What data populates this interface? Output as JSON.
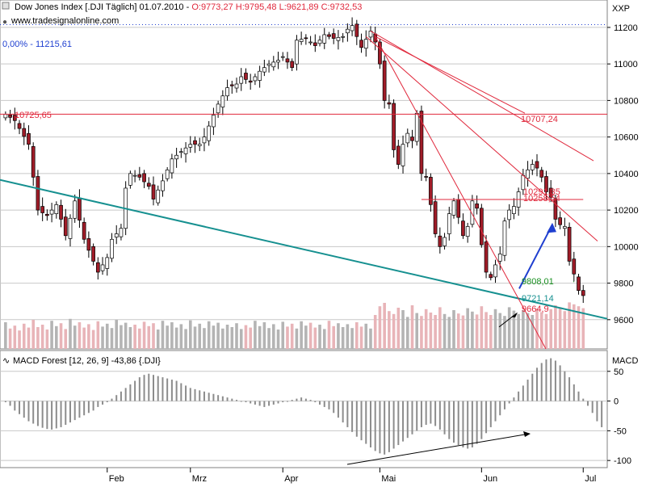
{
  "header": {
    "title": "Dow Jones Index [.DJI  Täglich] 01.07.2010 -",
    "ohlc": "O:9773,27 H:9795,48 L:9621,89 C:9732,53",
    "source": "www.tradesignalonline.com",
    "scale_label": "XXP",
    "ref_line_label": "0,00% - 11215,61"
  },
  "macd_header": {
    "title": "MACD Forest [12, 26, 9] -43,86 {.DJI}",
    "scale_label": "MACD"
  },
  "colors": {
    "background": "#ffffff",
    "grid": "#c8c8c8",
    "candle_up": "#ffffff",
    "candle_down": "#a01c28",
    "candle_wick": "#000000",
    "resistance_red": "#e0283c",
    "support_teal": "#169090",
    "green_level": "#189020",
    "blue_arrow": "#1f3fd0",
    "volume_gray": "#b4b4b4",
    "volume_pink": "#e8b4b8",
    "macd_bar": "#8c8c8c"
  },
  "chart_data": [
    {
      "type": "candlestick",
      "ylim": [
        9440,
        11350
      ],
      "y_ticks": [
        9600,
        9800,
        10000,
        10200,
        10400,
        10600,
        10800,
        11000,
        11200
      ],
      "x_ticks": [
        "Feb",
        "Mrz",
        "Apr",
        "Mai",
        "Jun",
        "Jul"
      ],
      "x_tick_days": [
        22,
        40,
        60,
        81,
        103,
        125
      ],
      "n_days": 130,
      "close_path": [
        [
          0,
          10725
        ],
        [
          2,
          10690
        ],
        [
          5,
          10560
        ],
        [
          7,
          10200
        ],
        [
          9,
          10170
        ],
        [
          11,
          10230
        ],
        [
          12,
          10150
        ],
        [
          13,
          10060
        ],
        [
          15,
          10250
        ],
        [
          17,
          10040
        ],
        [
          19,
          9920
        ],
        [
          20,
          9860
        ],
        [
          22,
          9940
        ],
        [
          23,
          10040
        ],
        [
          25,
          10100
        ],
        [
          26,
          10320
        ],
        [
          27,
          10400
        ],
        [
          29,
          10380
        ],
        [
          31,
          10330
        ],
        [
          32,
          10260
        ],
        [
          34,
          10360
        ],
        [
          36,
          10480
        ],
        [
          38,
          10520
        ],
        [
          40,
          10560
        ],
        [
          42,
          10560
        ],
        [
          43,
          10600
        ],
        [
          45,
          10720
        ],
        [
          46,
          10780
        ],
        [
          48,
          10870
        ],
        [
          50,
          10890
        ],
        [
          51,
          10930
        ],
        [
          53,
          10900
        ],
        [
          55,
          10960
        ],
        [
          57,
          11000
        ],
        [
          59,
          11020
        ],
        [
          60,
          11040
        ],
        [
          62,
          10980
        ],
        [
          63,
          11130
        ],
        [
          65,
          11140
        ],
        [
          67,
          11100
        ],
        [
          69,
          11160
        ],
        [
          71,
          11140
        ],
        [
          73,
          11150
        ],
        [
          74,
          11190
        ],
        [
          75,
          11210
        ],
        [
          77,
          11090
        ],
        [
          79,
          11180
        ],
        [
          80,
          11120
        ],
        [
          81,
          11000
        ],
        [
          82,
          10800
        ],
        [
          83,
          10780
        ],
        [
          84,
          10530
        ],
        [
          85,
          10450
        ],
        [
          86,
          10560
        ],
        [
          87,
          10620
        ],
        [
          88,
          10580
        ],
        [
          89,
          10730
        ],
        [
          90,
          10400
        ],
        [
          91,
          10380
        ],
        [
          92,
          10230
        ],
        [
          93,
          10070
        ],
        [
          94,
          10000
        ],
        [
          95,
          10050
        ],
        [
          96,
          10180
        ],
        [
          97,
          10250
        ],
        [
          98,
          10160
        ],
        [
          99,
          10060
        ],
        [
          100,
          10110
        ],
        [
          101,
          10250
        ],
        [
          102,
          10210
        ],
        [
          103,
          10010
        ],
        [
          104,
          9860
        ],
        [
          105,
          9830
        ],
        [
          106,
          9900
        ],
        [
          107,
          9960
        ],
        [
          108,
          10140
        ],
        [
          109,
          10200
        ],
        [
          110,
          10220
        ],
        [
          111,
          10300
        ],
        [
          112,
          10390
        ],
        [
          113,
          10420
        ],
        [
          114,
          10450
        ],
        [
          115,
          10430
        ],
        [
          116,
          10380
        ],
        [
          117,
          10300
        ],
        [
          118,
          10270
        ],
        [
          119,
          10150
        ],
        [
          120,
          10120
        ],
        [
          121,
          10110
        ],
        [
          122,
          9920
        ],
        [
          123,
          9850
        ],
        [
          124,
          9760
        ],
        [
          125,
          9732
        ]
      ],
      "vol_values": [
        55,
        42,
        48,
        38,
        52,
        44,
        60,
        45,
        50,
        40,
        58,
        47,
        53,
        41,
        62,
        48,
        55,
        44,
        51,
        39,
        57,
        46,
        52,
        43,
        60,
        49,
        54,
        45,
        50,
        42,
        56,
        47,
        53,
        40,
        58,
        48,
        55,
        44,
        51,
        41,
        59,
        46,
        52,
        43,
        57,
        48,
        54,
        42,
        50,
        45,
        53,
        41,
        49,
        44,
        58,
        47,
        55,
        43,
        51,
        40,
        56,
        46,
        52,
        42,
        57,
        48,
        54,
        44,
        50,
        41,
        58,
        47,
        53,
        45,
        51,
        43,
        55,
        46,
        52,
        42,
        70,
        88,
        95,
        78,
        72,
        85,
        80,
        66,
        90,
        74,
        68,
        82,
        75,
        70,
        86,
        72,
        66,
        80,
        73,
        69,
        84,
        77,
        71,
        88,
        76,
        70,
        82,
        74,
        68,
        86,
        79,
        72,
        80,
        74,
        70,
        83,
        76,
        72,
        82,
        90,
        86,
        78,
        96,
        92,
        88,
        84,
        80,
        78,
        74,
        72
      ],
      "annotations": {
        "level_10725": "10725,65",
        "level_10707": "10707,24",
        "level_10291": "10291,35",
        "level_10258": "10258,54",
        "level_9808": "9808,01",
        "level_9721": "9721,14",
        "level_9664": "9664,9"
      }
    },
    {
      "type": "bar",
      "name": "MACD Forest",
      "ylim": [
        -112,
        85
      ],
      "y_ticks": [
        50,
        0,
        -50,
        -100
      ],
      "values": [
        -2,
        -8,
        -16,
        -22,
        -28,
        -34,
        -38,
        -42,
        -45,
        -47,
        -48,
        -46,
        -44,
        -40,
        -36,
        -32,
        -28,
        -24,
        -20,
        -16,
        -10,
        -6,
        -2,
        4,
        10,
        16,
        22,
        28,
        34,
        40,
        44,
        46,
        44,
        42,
        40,
        38,
        36,
        34,
        30,
        26,
        22,
        20,
        18,
        16,
        14,
        12,
        10,
        8,
        6,
        4,
        2,
        0,
        -2,
        -4,
        -6,
        -8,
        -10,
        -8,
        -6,
        -4,
        -2,
        0,
        2,
        4,
        6,
        4,
        2,
        -2,
        -6,
        -10,
        -14,
        -20,
        -28,
        -36,
        -44,
        -52,
        -60,
        -66,
        -72,
        -78,
        -84,
        -88,
        -90,
        -86,
        -80,
        -74,
        -68,
        -62,
        -56,
        -50,
        -44,
        -40,
        -38,
        -42,
        -48,
        -56,
        -64,
        -70,
        -74,
        -78,
        -80,
        -78,
        -72,
        -64,
        -54,
        -44,
        -34,
        -24,
        -14,
        -4,
        6,
        16,
        26,
        36,
        46,
        56,
        64,
        70,
        72,
        68,
        60,
        50,
        40,
        28,
        16,
        4,
        -8,
        -20,
        -34,
        -44
      ]
    }
  ],
  "x_axis_labels": [
    "Feb",
    "Mrz",
    "Apr",
    "Mai",
    "Jun",
    "Jul"
  ]
}
